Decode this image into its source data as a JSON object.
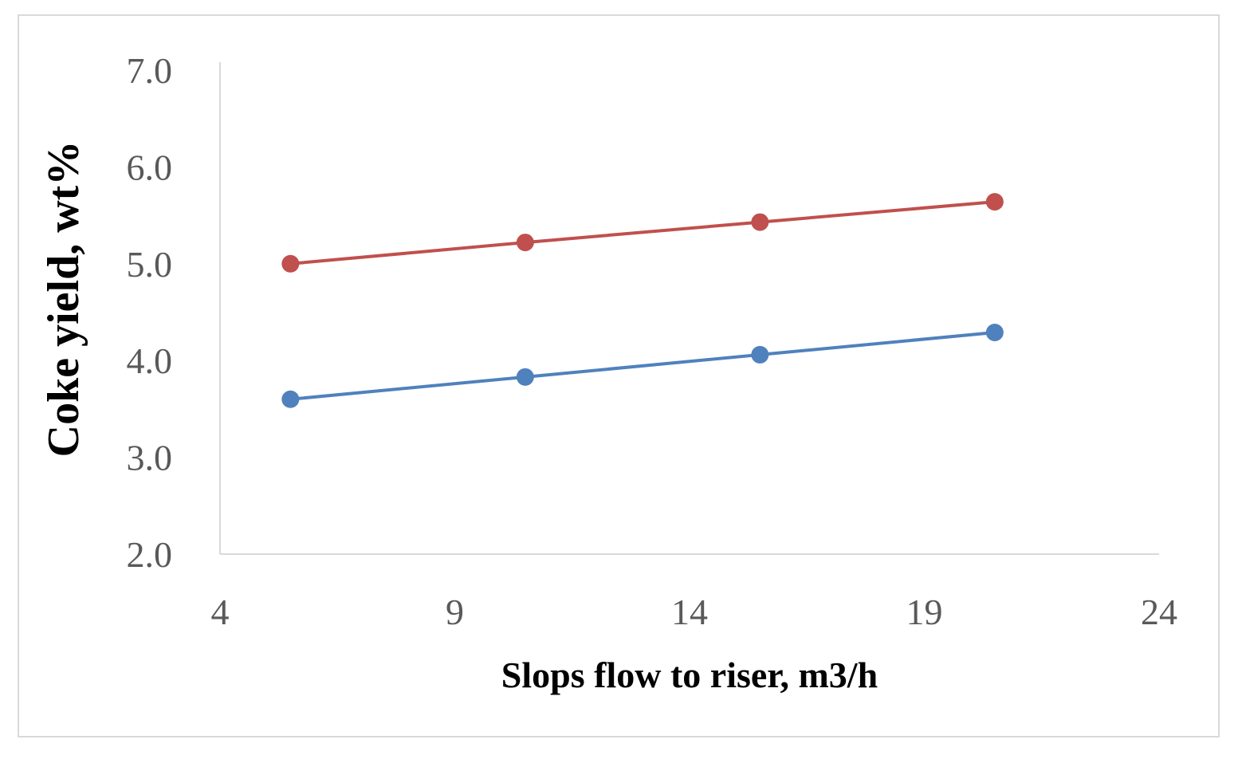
{
  "chart_data": {
    "type": "line",
    "title": "",
    "xlabel": "Slops flow to riser, m3/h",
    "ylabel": "Coke yield, wt%",
    "xlim": [
      4,
      24
    ],
    "ylim": [
      2.0,
      7.0
    ],
    "x_ticks": [
      "4",
      "9",
      "14",
      "19",
      "24"
    ],
    "y_ticks": [
      "2.0",
      "3.0",
      "4.0",
      "5.0",
      "6.0",
      "7.0"
    ],
    "grid": false,
    "legend": "none",
    "series": [
      {
        "name": "upper series",
        "color": "#c0504d",
        "x": [
          5.5,
          10.5,
          15.5,
          20.5
        ],
        "values": [
          5.0,
          5.22,
          5.43,
          5.64
        ]
      },
      {
        "name": "lower series",
        "color": "#4f81bd",
        "x": [
          5.5,
          10.5,
          15.5,
          20.5
        ],
        "values": [
          3.6,
          3.83,
          4.06,
          4.29
        ]
      }
    ],
    "axis_color": "#d9d9d9"
  }
}
